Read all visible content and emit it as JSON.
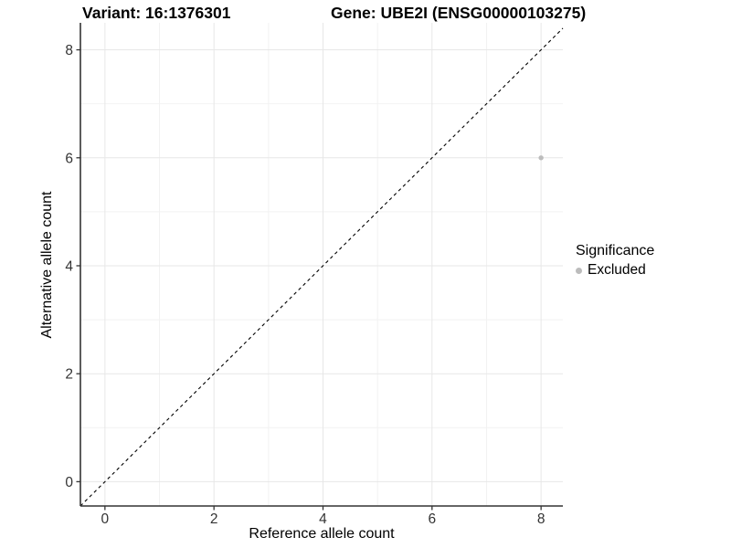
{
  "titles": {
    "variant": "Variant: 16:1376301",
    "gene": "Gene: UBE2I (ENSG00000103275)"
  },
  "chart_data": {
    "type": "scatter",
    "title_left": "Variant: 16:1376301",
    "title_right": "Gene: UBE2I (ENSG00000103275)",
    "xlabel": "Reference allele count",
    "ylabel": "Alternative allele count",
    "xlim": [
      -0.45,
      8.4
    ],
    "ylim": [
      -0.45,
      8.5
    ],
    "x_ticks": [
      0,
      2,
      4,
      6,
      8
    ],
    "y_ticks": [
      0,
      2,
      4,
      6,
      8
    ],
    "x_minor_ticks": [
      1,
      3,
      5,
      7
    ],
    "y_minor_ticks": [
      1,
      3,
      5,
      7
    ],
    "grid": "on",
    "reference_line": {
      "kind": "identity",
      "slope": 1,
      "intercept": 0,
      "style": "dashed",
      "color": "#000000"
    },
    "series": [
      {
        "name": "Excluded",
        "color": "#bcbcbc",
        "points": [
          {
            "x": 8,
            "y": 6
          }
        ]
      }
    ],
    "legend": {
      "title": "Significance",
      "position": "right"
    }
  },
  "colors": {
    "excluded_point": "#bcbcbc",
    "axis_line": "#333333",
    "tick_text": "#333333",
    "grid_major": "#e7e7e7",
    "grid_minor": "#f2f2f2",
    "reference_line": "#000000"
  }
}
